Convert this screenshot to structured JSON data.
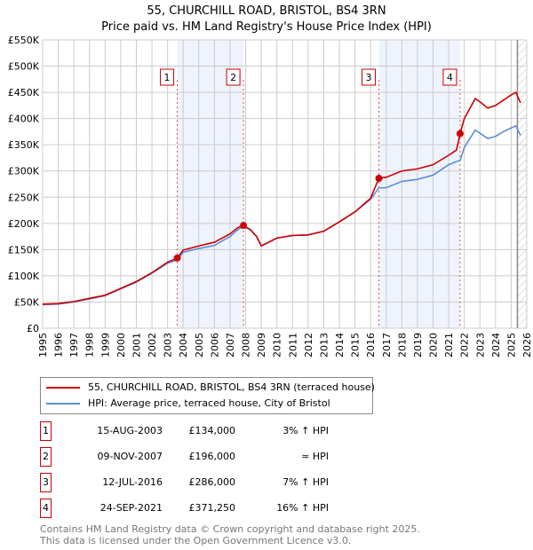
{
  "title": "55, CHURCHILL ROAD, BRISTOL, BS4 3RN",
  "subtitle": "Price paid vs. HM Land Registry's House Price Index (HPI)",
  "chart_data": {
    "type": "line",
    "ylim": [
      0,
      550000
    ],
    "xlim": [
      1995,
      2026
    ],
    "yticks": [
      {
        "v": 0,
        "l": "£0"
      },
      {
        "v": 50000,
        "l": "£50K"
      },
      {
        "v": 100000,
        "l": "£100K"
      },
      {
        "v": 150000,
        "l": "£150K"
      },
      {
        "v": 200000,
        "l": "£200K"
      },
      {
        "v": 250000,
        "l": "£250K"
      },
      {
        "v": 300000,
        "l": "£300K"
      },
      {
        "v": 350000,
        "l": "£350K"
      },
      {
        "v": 400000,
        "l": "£400K"
      },
      {
        "v": 450000,
        "l": "£450K"
      },
      {
        "v": 500000,
        "l": "£500K"
      },
      {
        "v": 550000,
        "l": "£550K"
      }
    ],
    "xticks": [
      "1995",
      "1996",
      "1997",
      "1998",
      "1999",
      "2000",
      "2001",
      "2002",
      "2003",
      "2004",
      "2005",
      "2006",
      "2007",
      "2008",
      "2009",
      "2010",
      "2011",
      "2012",
      "2013",
      "2014",
      "2015",
      "2016",
      "2017",
      "2018",
      "2019",
      "2020",
      "2021",
      "2022",
      "2023",
      "2024",
      "2025",
      "2026"
    ],
    "series": [
      {
        "name": "55, CHURCHILL ROAD, BRISTOL, BS4 3RN (terraced house)",
        "color": "#cc0000",
        "x": [
          1995,
          1996,
          1997,
          1998,
          1999,
          2000,
          2001,
          2002,
          2003,
          2003.62,
          2004,
          2005,
          2006,
          2007,
          2007.5,
          2007.86,
          2008.3,
          2008.7,
          2009,
          2010,
          2011,
          2012,
          2013,
          2014,
          2015,
          2016,
          2016.53,
          2017,
          2018,
          2019,
          2020,
          2021,
          2021.5,
          2021.73,
          2022,
          2022.7,
          2023,
          2023.5,
          2024,
          2024.5,
          2025,
          2025.3,
          2025.6
        ],
        "y": [
          46000,
          47000,
          51000,
          57000,
          63000,
          76000,
          89000,
          106000,
          126000,
          134000,
          149000,
          157000,
          164000,
          180000,
          192000,
          196000,
          188000,
          175000,
          157000,
          172000,
          177000,
          178000,
          185000,
          203000,
          222000,
          248000,
          286000,
          288000,
          300000,
          304000,
          312000,
          330000,
          340000,
          371250,
          400000,
          438000,
          432000,
          420000,
          425000,
          435000,
          445000,
          450000,
          430000
        ]
      },
      {
        "name": "HPI: Average price, terraced house, City of Bristol",
        "color": "#5b8fd4",
        "x": [
          1995,
          1996,
          1997,
          1998,
          1999,
          2000,
          2001,
          2002,
          2003,
          2003.62,
          2004,
          2005,
          2006,
          2007,
          2007.5,
          2007.86,
          2008.3,
          2008.7,
          2009,
          2010,
          2011,
          2012,
          2013,
          2014,
          2015,
          2016,
          2016.53,
          2017,
          2018,
          2019,
          2020,
          2021,
          2021.5,
          2021.73,
          2022,
          2022.7,
          2023,
          2023.5,
          2024,
          2024.5,
          2025,
          2025.3,
          2025.6
        ],
        "y": [
          45000,
          46000,
          50000,
          56000,
          62000,
          75000,
          88000,
          105000,
          124000,
          130000,
          145000,
          152000,
          158000,
          175000,
          188000,
          194000,
          188000,
          175000,
          157000,
          172000,
          177000,
          178000,
          185000,
          203000,
          222000,
          246000,
          268000,
          268000,
          280000,
          284000,
          292000,
          312000,
          318000,
          320000,
          345000,
          378000,
          372000,
          362000,
          366000,
          375000,
          382000,
          386000,
          368000
        ]
      }
    ],
    "sales": [
      {
        "n": "1",
        "x": 2003.62,
        "y": 134000
      },
      {
        "n": "2",
        "x": 2007.86,
        "y": 196000
      },
      {
        "n": "3",
        "x": 2016.53,
        "y": 286000
      },
      {
        "n": "4",
        "x": 2021.73,
        "y": 371250
      }
    ],
    "shaded": [
      [
        2003.62,
        2007.86
      ],
      [
        2016.53,
        2021.73
      ]
    ],
    "hatch_from": 2025.4
  },
  "legend": {
    "red": "55, CHURCHILL ROAD, BRISTOL, BS4 3RN (terraced house)",
    "blue": "HPI: Average price, terraced house, City of Bristol"
  },
  "table": [
    {
      "n": "1",
      "date": "15-AUG-2003",
      "price": "£134,000",
      "hpi": "3% ↑ HPI"
    },
    {
      "n": "2",
      "date": "09-NOV-2007",
      "price": "£196,000",
      "hpi": "≈ HPI"
    },
    {
      "n": "3",
      "date": "12-JUL-2016",
      "price": "£286,000",
      "hpi": "7% ↑ HPI"
    },
    {
      "n": "4",
      "date": "24-SEP-2021",
      "price": "£371,250",
      "hpi": "16% ↑ HPI"
    }
  ],
  "footer": [
    "Contains HM Land Registry data © Crown copyright and database right 2025.",
    "This data is licensed under the Open Government Licence v3.0."
  ]
}
